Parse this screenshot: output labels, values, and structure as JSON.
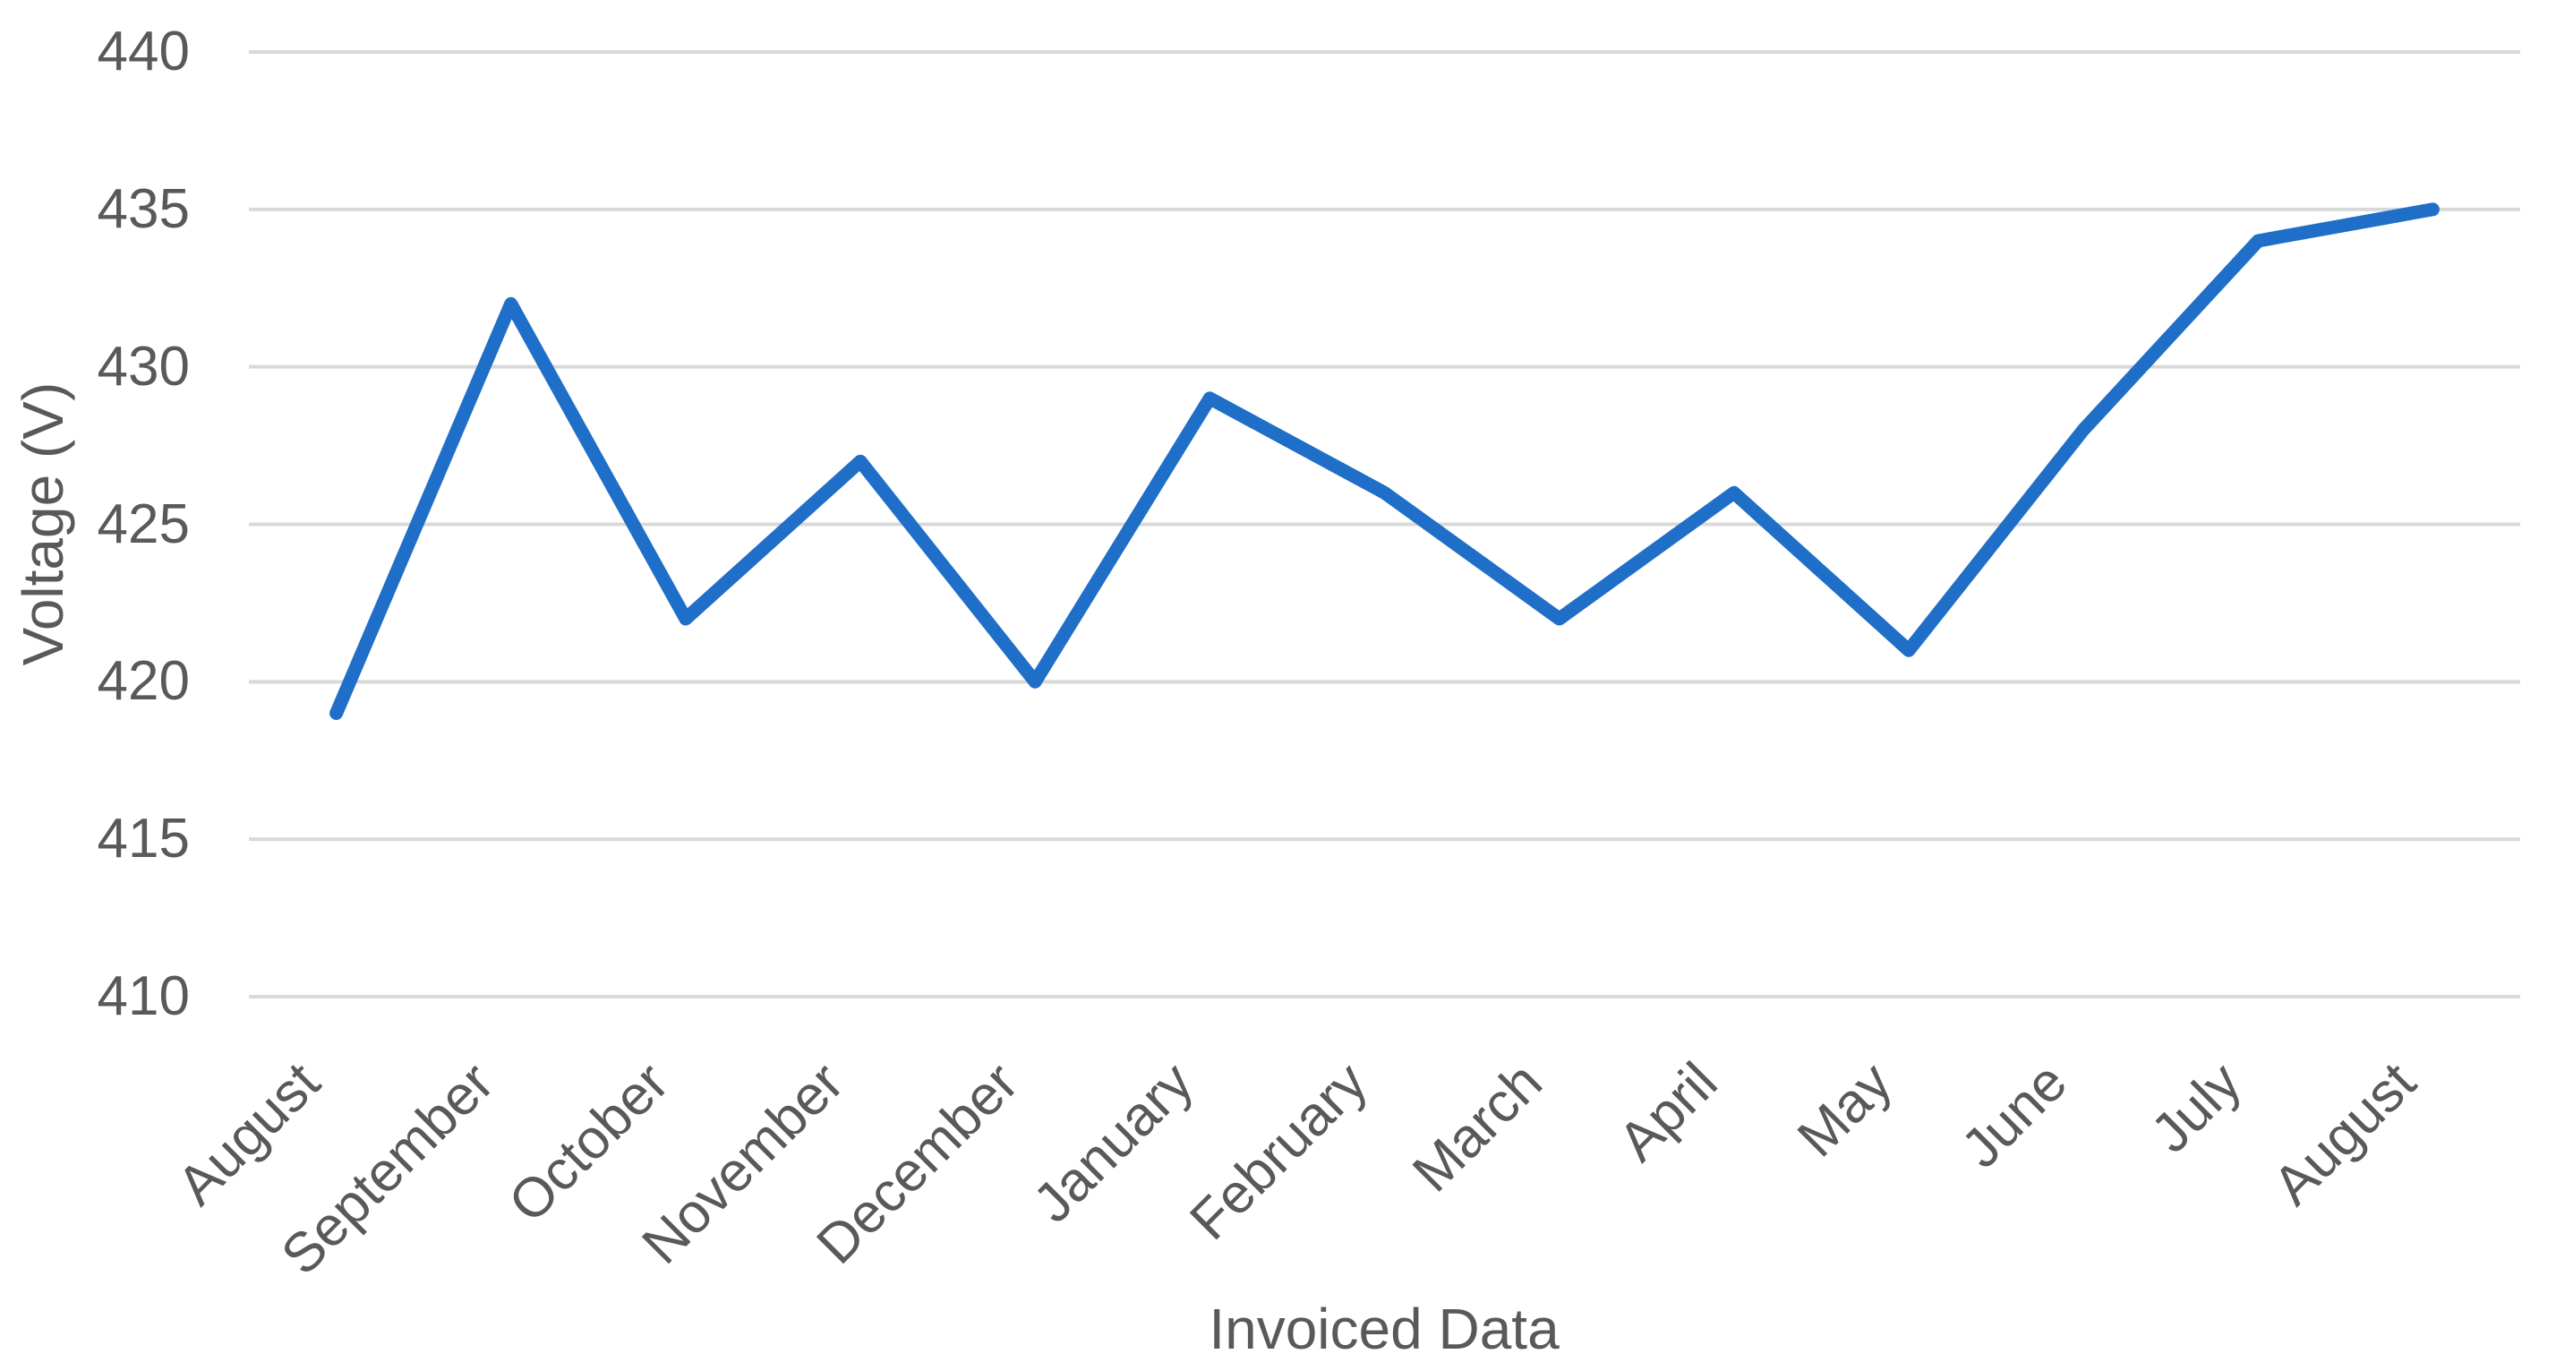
{
  "chart_data": {
    "type": "line",
    "title": "",
    "xlabel": "Invoiced Data",
    "ylabel": "Voltage (V)",
    "categories": [
      "August",
      "September",
      "October",
      "November",
      "December",
      "January",
      "February",
      "March",
      "April",
      "May",
      "June",
      "July",
      "August"
    ],
    "series": [
      {
        "name": "Voltage",
        "values": [
          419,
          432,
          422,
          427,
          420,
          429,
          426,
          422,
          426,
          421,
          428,
          434,
          435
        ]
      }
    ],
    "ylim": [
      410,
      440
    ],
    "yticks": [
      440,
      435,
      430,
      425,
      420,
      415,
      410
    ],
    "ytick_step": 5,
    "grid": "horizontal",
    "legend": "none",
    "x_label_rotation_deg": -45,
    "colors": {
      "line": "#1f6fc8",
      "gridline": "#d9d9d9",
      "text": "#595959",
      "background": "#ffffff"
    }
  }
}
